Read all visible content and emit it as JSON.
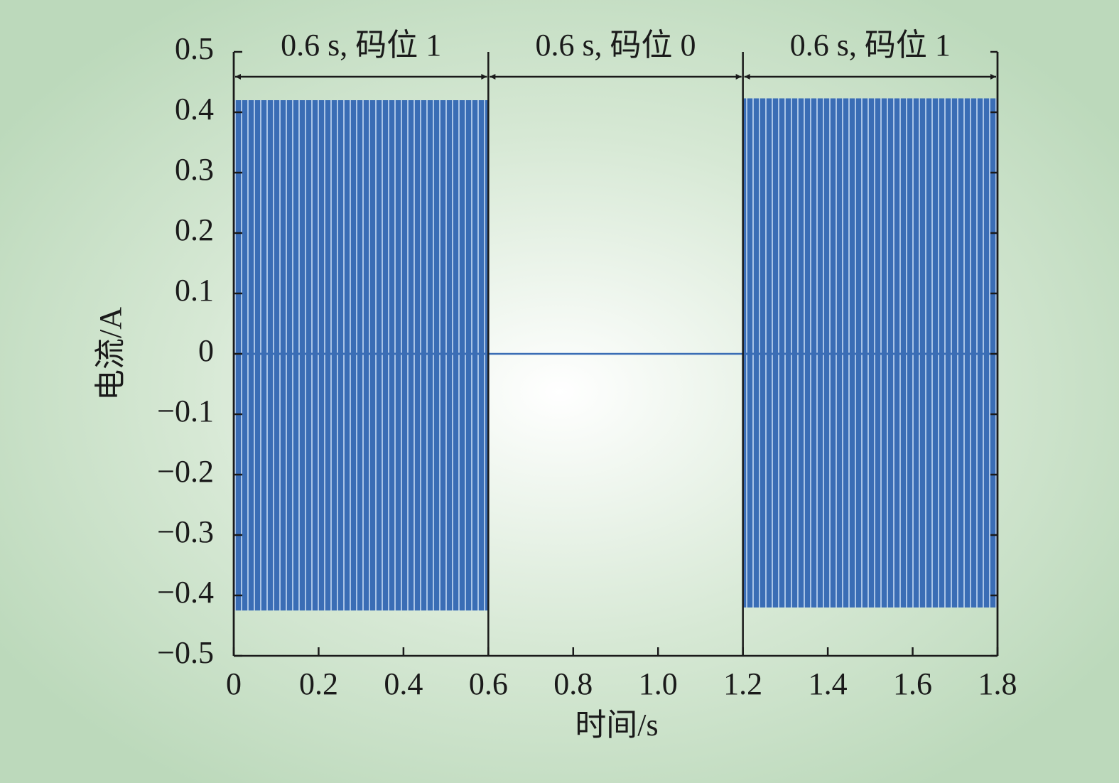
{
  "chart_data": {
    "type": "envelope",
    "x_label": "时间/s",
    "y_label": "电流/A",
    "xlim": [
      0,
      1.8
    ],
    "ylim": [
      -0.5,
      0.5
    ],
    "xticks": [
      0,
      0.2,
      0.4,
      0.6,
      0.8,
      {
        "value": 1,
        "label": "1.0"
      },
      1.2,
      1.4,
      1.6,
      1.8
    ],
    "yticks": [
      {
        "value": -0.5,
        "label": "−0.5"
      },
      {
        "value": -0.4,
        "label": "−0.4"
      },
      {
        "value": -0.3,
        "label": "−0.3"
      },
      {
        "value": -0.2,
        "label": "−0.2"
      },
      {
        "value": -0.1,
        "label": "−0.1"
      },
      0,
      0.1,
      0.2,
      0.3,
      0.4,
      0.5
    ],
    "color": "#3a6db5",
    "segments": [
      {
        "x": [
          0,
          0.6
        ],
        "max": 0.42,
        "min": -0.425
      },
      {
        "x": [
          0.6,
          1.2
        ],
        "max": 0,
        "min": 0
      },
      {
        "x": [
          1.2,
          1.8
        ],
        "max": 0.423,
        "min": -0.42
      }
    ],
    "annotations": [
      {
        "text": "0.6 s, 码位 1",
        "x": [
          0,
          0.6
        ]
      },
      {
        "text": "0.6 s, 码位 0",
        "x": [
          0.6,
          1.2
        ]
      },
      {
        "text": "0.6 s, 码位 1",
        "x": [
          1.2,
          1.8
        ]
      }
    ]
  }
}
